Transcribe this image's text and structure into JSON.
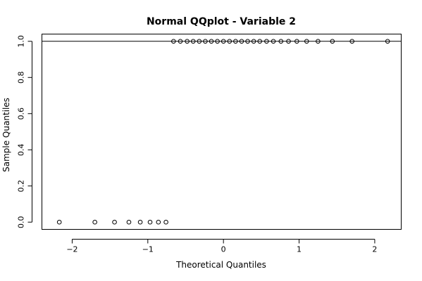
{
  "chart_data": {
    "type": "scatter",
    "title": "Normal QQplot - Variable 2",
    "xlabel": "Theoretical Quantiles",
    "ylabel": "Sample Quantiles",
    "xlim": [
      -2.4,
      2.35
    ],
    "ylim": [
      -0.04,
      1.04
    ],
    "x_ticks": [
      -2,
      -1,
      0,
      1,
      2
    ],
    "x_tick_labels": [
      "−2",
      "−1",
      "0",
      "1",
      "2"
    ],
    "y_ticks": [
      0.0,
      0.2,
      0.4,
      0.6,
      0.8,
      1.0
    ],
    "y_tick_labels": [
      "0.0",
      "0.2",
      "0.4",
      "0.6",
      "0.8",
      "1.0"
    ],
    "reference_line_y": 1.0,
    "grid": false,
    "series": [
      {
        "points": [
          {
            "x": -2.17,
            "y": 0
          },
          {
            "x": -1.7,
            "y": 0
          },
          {
            "x": -1.44,
            "y": 0
          },
          {
            "x": -1.25,
            "y": 0
          },
          {
            "x": -1.1,
            "y": 0
          },
          {
            "x": -0.97,
            "y": 0
          },
          {
            "x": -0.86,
            "y": 0
          },
          {
            "x": -0.76,
            "y": 0
          },
          {
            "x": -0.66,
            "y": 1
          },
          {
            "x": -0.57,
            "y": 1
          },
          {
            "x": -0.48,
            "y": 1
          },
          {
            "x": -0.4,
            "y": 1
          },
          {
            "x": -0.32,
            "y": 1
          },
          {
            "x": -0.24,
            "y": 1
          },
          {
            "x": -0.16,
            "y": 1
          },
          {
            "x": -0.08,
            "y": 1
          },
          {
            "x": 0.0,
            "y": 1
          },
          {
            "x": 0.08,
            "y": 1
          },
          {
            "x": 0.16,
            "y": 1
          },
          {
            "x": 0.24,
            "y": 1
          },
          {
            "x": 0.32,
            "y": 1
          },
          {
            "x": 0.4,
            "y": 1
          },
          {
            "x": 0.48,
            "y": 1
          },
          {
            "x": 0.57,
            "y": 1
          },
          {
            "x": 0.66,
            "y": 1
          },
          {
            "x": 0.76,
            "y": 1
          },
          {
            "x": 0.86,
            "y": 1
          },
          {
            "x": 0.97,
            "y": 1
          },
          {
            "x": 1.1,
            "y": 1
          },
          {
            "x": 1.25,
            "y": 1
          },
          {
            "x": 1.44,
            "y": 1
          },
          {
            "x": 1.7,
            "y": 1
          },
          {
            "x": 2.17,
            "y": 1
          }
        ]
      }
    ]
  }
}
